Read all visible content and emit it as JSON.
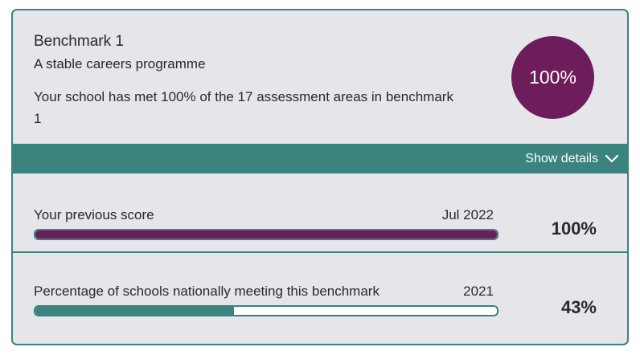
{
  "benchmark": {
    "title": "Benchmark 1",
    "subtitle": "A stable careers programme",
    "description": "Your school has met 100% of the 17 assessment areas in benchmark 1",
    "score_label": "100%"
  },
  "details_toggle": {
    "label": "Show details",
    "icon": "chevron-down-icon"
  },
  "previous_score": {
    "label": "Your previous score",
    "date": "Jul 2022",
    "value_label": "100%",
    "progress": 1.0
  },
  "national": {
    "label": "Percentage of schools nationally meeting this benchmark",
    "date": "2021",
    "value_label": "43%",
    "progress": 0.43
  },
  "colors": {
    "accent_teal": "#3a837e",
    "accent_plum": "#6d1d5a",
    "card_background": "#e5e5ea"
  }
}
